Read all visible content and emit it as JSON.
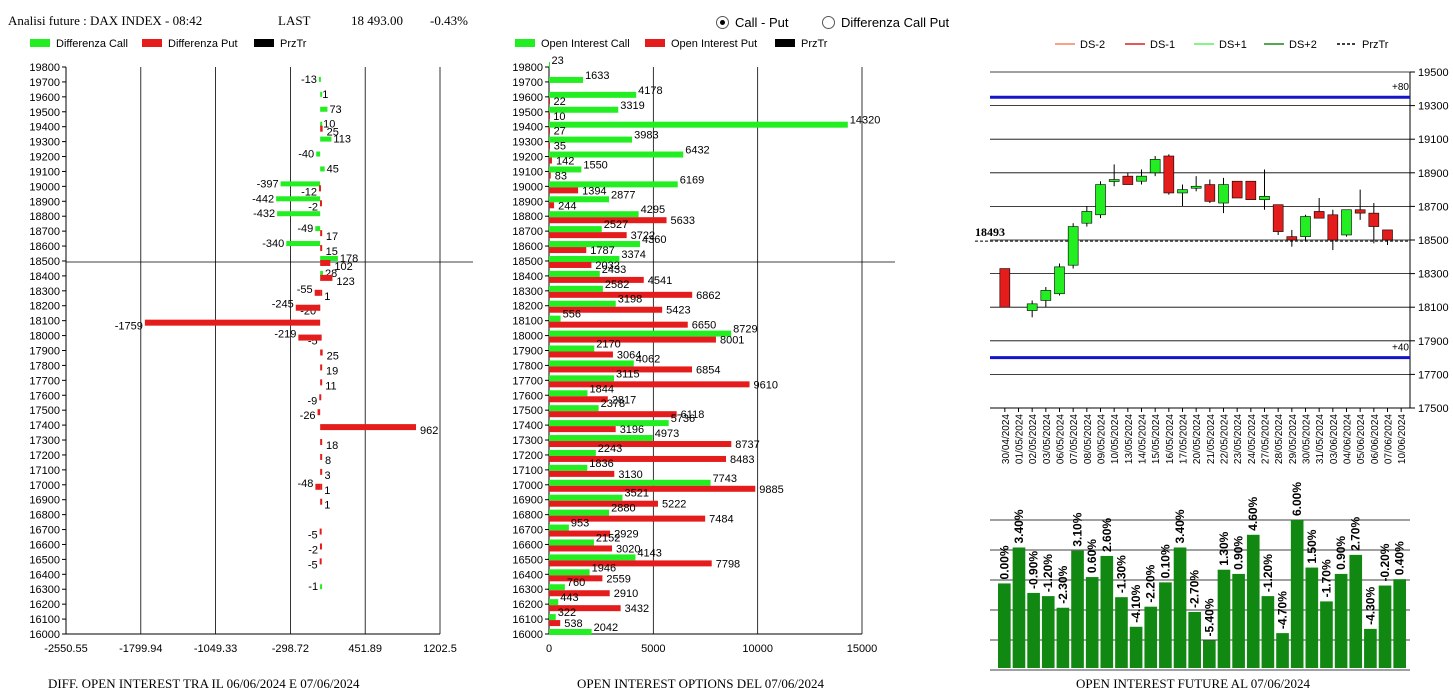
{
  "header": {
    "title": "Analisi future : DAX INDEX - 08:42",
    "last_label": "LAST",
    "last_value": "18 493.00",
    "change": "-0.43%"
  },
  "radio": {
    "options": [
      "Call - Put",
      "Differenza Call Put"
    ],
    "selected": 0
  },
  "colors": {
    "call": "#22ee22",
    "put": "#e51c1c",
    "prztr": "#000000",
    "ds_minus2": "#f4845c",
    "ds_minus1": "#d62020",
    "ds_plus1": "#5ef05e",
    "ds_plus2": "#1a8a1a",
    "blue": "#1414c8",
    "oi_bar": "#118811"
  },
  "panel1": {
    "legend": [
      "Differenza Call",
      "Differenza Put",
      "PrzTr"
    ],
    "footer": "DIFF. OPEN INTEREST TRA IL 06/06/2024 E 07/06/2024",
    "xticks": [
      "-2550.55",
      "-1799.94",
      "-1049.33",
      "-298.72",
      "451.89",
      "1202.5"
    ]
  },
  "panel2": {
    "legend": [
      "Open Interest Call",
      "Open Interest Put",
      "PrzTr"
    ],
    "footer": "OPEN INTEREST OPTIONS DEL 07/06/2024",
    "xticks": [
      "0",
      "5000",
      "10000",
      "15000"
    ]
  },
  "panel3": {
    "legend": [
      "DS-2",
      "DS-1",
      "DS+1",
      "DS+2",
      "PrzTr"
    ],
    "footer": "OPEN INTEREST FUTURE AL 07/06/2024",
    "price_label": "18493",
    "upper_tag": "+80",
    "lower_tag": "+40",
    "yticks": [
      "19500",
      "19300",
      "19100",
      "18900",
      "18700",
      "18500",
      "18300",
      "18100",
      "17900",
      "17700",
      "17500"
    ]
  },
  "chart_data": [
    {
      "type": "bar",
      "title": "DIFF. OPEN INTEREST TRA IL 06/06/2024 E 07/06/2024",
      "orientation": "horizontal",
      "prztr": 18493,
      "xlim": [
        -2550.55,
        1202.5
      ],
      "strikes": [
        19800,
        19700,
        19600,
        19500,
        19400,
        19300,
        19200,
        19100,
        19000,
        18900,
        18800,
        18700,
        18600,
        18500,
        18400,
        18300,
        18200,
        18100,
        18000,
        17900,
        17800,
        17700,
        17600,
        17500,
        17400,
        17300,
        17200,
        17100,
        17000,
        16900,
        16800,
        16700,
        16600,
        16500,
        16400,
        16300,
        16200,
        16100,
        16000
      ],
      "series": [
        {
          "name": "Differenza Call",
          "values": [
            null,
            -13,
            1,
            73,
            10,
            113,
            -40,
            45,
            -397,
            -442,
            -432,
            -49,
            -340,
            178,
            28,
            null,
            null,
            null,
            null,
            null,
            null,
            null,
            null,
            null,
            null,
            null,
            null,
            null,
            null,
            null,
            null,
            null,
            null,
            null,
            null,
            -1,
            null,
            null,
            null
          ]
        },
        {
          "name": "Differenza Put",
          "values": [
            null,
            null,
            null,
            null,
            25,
            null,
            null,
            null,
            -12,
            -2,
            null,
            17,
            15,
            102,
            123,
            1,
            -20,
            -1759,
            -5,
            25,
            19,
            11,
            -9,
            -26,
            962,
            18,
            8,
            3,
            1,
            1,
            null,
            -5,
            -2,
            -5,
            null,
            null,
            null,
            null,
            null
          ]
        }
      ],
      "extra_labels": [
        {
          "strike": 18300,
          "value": -55,
          "series": "Differenza Put"
        },
        {
          "strike": 18200,
          "value": -245,
          "series": "Differenza Put"
        },
        {
          "strike": 18000,
          "value": -219,
          "series": "Differenza Put"
        },
        {
          "strike": 17000,
          "value": -48,
          "series": "Differenza Put"
        }
      ]
    },
    {
      "type": "bar",
      "title": "OPEN INTEREST OPTIONS DEL 07/06/2024",
      "orientation": "horizontal",
      "prztr": 18493,
      "xlim": [
        0,
        15000
      ],
      "strikes": [
        19800,
        19700,
        19600,
        19500,
        19400,
        19300,
        19200,
        19100,
        19000,
        18900,
        18800,
        18700,
        18600,
        18500,
        18400,
        18300,
        18200,
        18100,
        18000,
        17900,
        17800,
        17700,
        17600,
        17500,
        17400,
        17300,
        17200,
        17100,
        17000,
        16900,
        16800,
        16700,
        16600,
        16500,
        16400,
        16300,
        16200,
        16100,
        16000
      ],
      "series": [
        {
          "name": "Open Interest Call",
          "values": [
            23,
            1633,
            4178,
            3319,
            14320,
            3983,
            6432,
            1550,
            6169,
            2877,
            4295,
            2527,
            4360,
            3374,
            2433,
            2582,
            3198,
            556,
            8729,
            2170,
            4062,
            3115,
            1844,
            2378,
            5736,
            4973,
            2243,
            1836,
            7743,
            3521,
            2880,
            953,
            2152,
            4143,
            1946,
            760,
            443,
            322,
            2042
          ]
        },
        {
          "name": "Open Interest Put",
          "values": [
            null,
            null,
            22,
            10,
            27,
            35,
            142,
            83,
            1394,
            244,
            5633,
            3722,
            1787,
            2032,
            4541,
            6862,
            5423,
            6650,
            8001,
            3064,
            6854,
            9610,
            2817,
            6118,
            3196,
            8737,
            8483,
            3130,
            9885,
            5222,
            7484,
            2929,
            3020,
            7798,
            2559,
            2910,
            3432,
            538,
            null
          ]
        }
      ]
    },
    {
      "type": "candlestick",
      "title": "OPEN INTEREST FUTURE AL 07/06/2024",
      "ylim": [
        17500,
        19500
      ],
      "bands": {
        "upper": 19350,
        "lower": 17800
      },
      "prztr": 18493,
      "x": [
        "30/04/2024",
        "01/05/2024",
        "02/05/2024",
        "03/05/2024",
        "06/05/2024",
        "07/05/2024",
        "08/05/2024",
        "09/05/2024",
        "10/05/2024",
        "13/05/2024",
        "14/05/2024",
        "15/05/2024",
        "16/05/2024",
        "17/05/2024",
        "20/05/2024",
        "21/05/2024",
        "22/05/2024",
        "23/05/2024",
        "24/05/2024",
        "27/05/2024",
        "28/05/2024",
        "29/05/2024",
        "30/05/2024",
        "31/05/2024",
        "03/06/2024",
        "04/06/2024",
        "05/06/2024",
        "06/06/2024",
        "07/06/2024",
        "10/06/2024"
      ],
      "candles": [
        [
          18330,
          18330,
          18100,
          18100
        ],
        [
          null,
          null,
          null,
          null
        ],
        [
          18080,
          18140,
          18040,
          18120
        ],
        [
          18140,
          18220,
          18100,
          18200
        ],
        [
          18180,
          18360,
          18170,
          18340
        ],
        [
          18350,
          18600,
          18330,
          18580
        ],
        [
          18600,
          18700,
          18580,
          18670
        ],
        [
          18650,
          18850,
          18630,
          18830
        ],
        [
          18850,
          18950,
          18820,
          18860
        ],
        [
          18880,
          18900,
          18840,
          18830
        ],
        [
          18850,
          18920,
          18830,
          18880
        ],
        [
          18900,
          19000,
          18880,
          18980
        ],
        [
          19000,
          19010,
          18770,
          18780
        ],
        [
          18780,
          18830,
          18700,
          18800
        ],
        [
          18820,
          18880,
          18790,
          18820
        ],
        [
          18830,
          18860,
          18720,
          18730
        ],
        [
          18720,
          18870,
          18660,
          18830
        ],
        [
          18850,
          18850,
          18750,
          18750
        ],
        [
          18850,
          18850,
          18780,
          18740
        ],
        [
          18740,
          18920,
          18680,
          18760
        ],
        [
          18710,
          18710,
          18530,
          18550
        ],
        [
          18520,
          18560,
          18460,
          18500
        ],
        [
          18520,
          18650,
          18490,
          18640
        ],
        [
          18670,
          18750,
          18630,
          18630
        ],
        [
          18650,
          18680,
          18440,
          18500
        ],
        [
          18530,
          18680,
          18520,
          18680
        ],
        [
          18680,
          18800,
          18620,
          18660
        ],
        [
          18660,
          18720,
          18480,
          18580
        ],
        [
          18560,
          18560,
          18470,
          18500
        ],
        [
          null,
          null,
          null,
          null
        ]
      ],
      "oi_series": {
        "name": "Open Interest",
        "values": [
          0.0,
          3.4,
          -0.9,
          -1.2,
          -2.3,
          3.1,
          0.6,
          2.6,
          -1.3,
          -4.1,
          -2.2,
          0.1,
          3.4,
          -2.7,
          -5.4,
          1.3,
          0.9,
          4.6,
          -1.2,
          -4.7,
          6.0,
          1.5,
          -1.7,
          0.9,
          2.7,
          -4.3,
          -0.2,
          0.4
        ],
        "labels": [
          "0.00%",
          "3.40%",
          "-0.90%",
          "-1.20%",
          "-2.30%",
          "3.10%",
          "0.60%",
          "2.60%",
          "-1.30%",
          "-4.10%",
          "-2.20%",
          "0.10%",
          "3.40%",
          "-2.70%",
          "-5.40%",
          "1.30%",
          "0.90%",
          "4.60%",
          "-1.20%",
          "-4.70%",
          "6.00%",
          "1.50%",
          "-1.70%",
          "0.90%",
          "2.70%",
          "-4.30%",
          "-0.20%",
          "0.40%"
        ]
      }
    }
  ]
}
